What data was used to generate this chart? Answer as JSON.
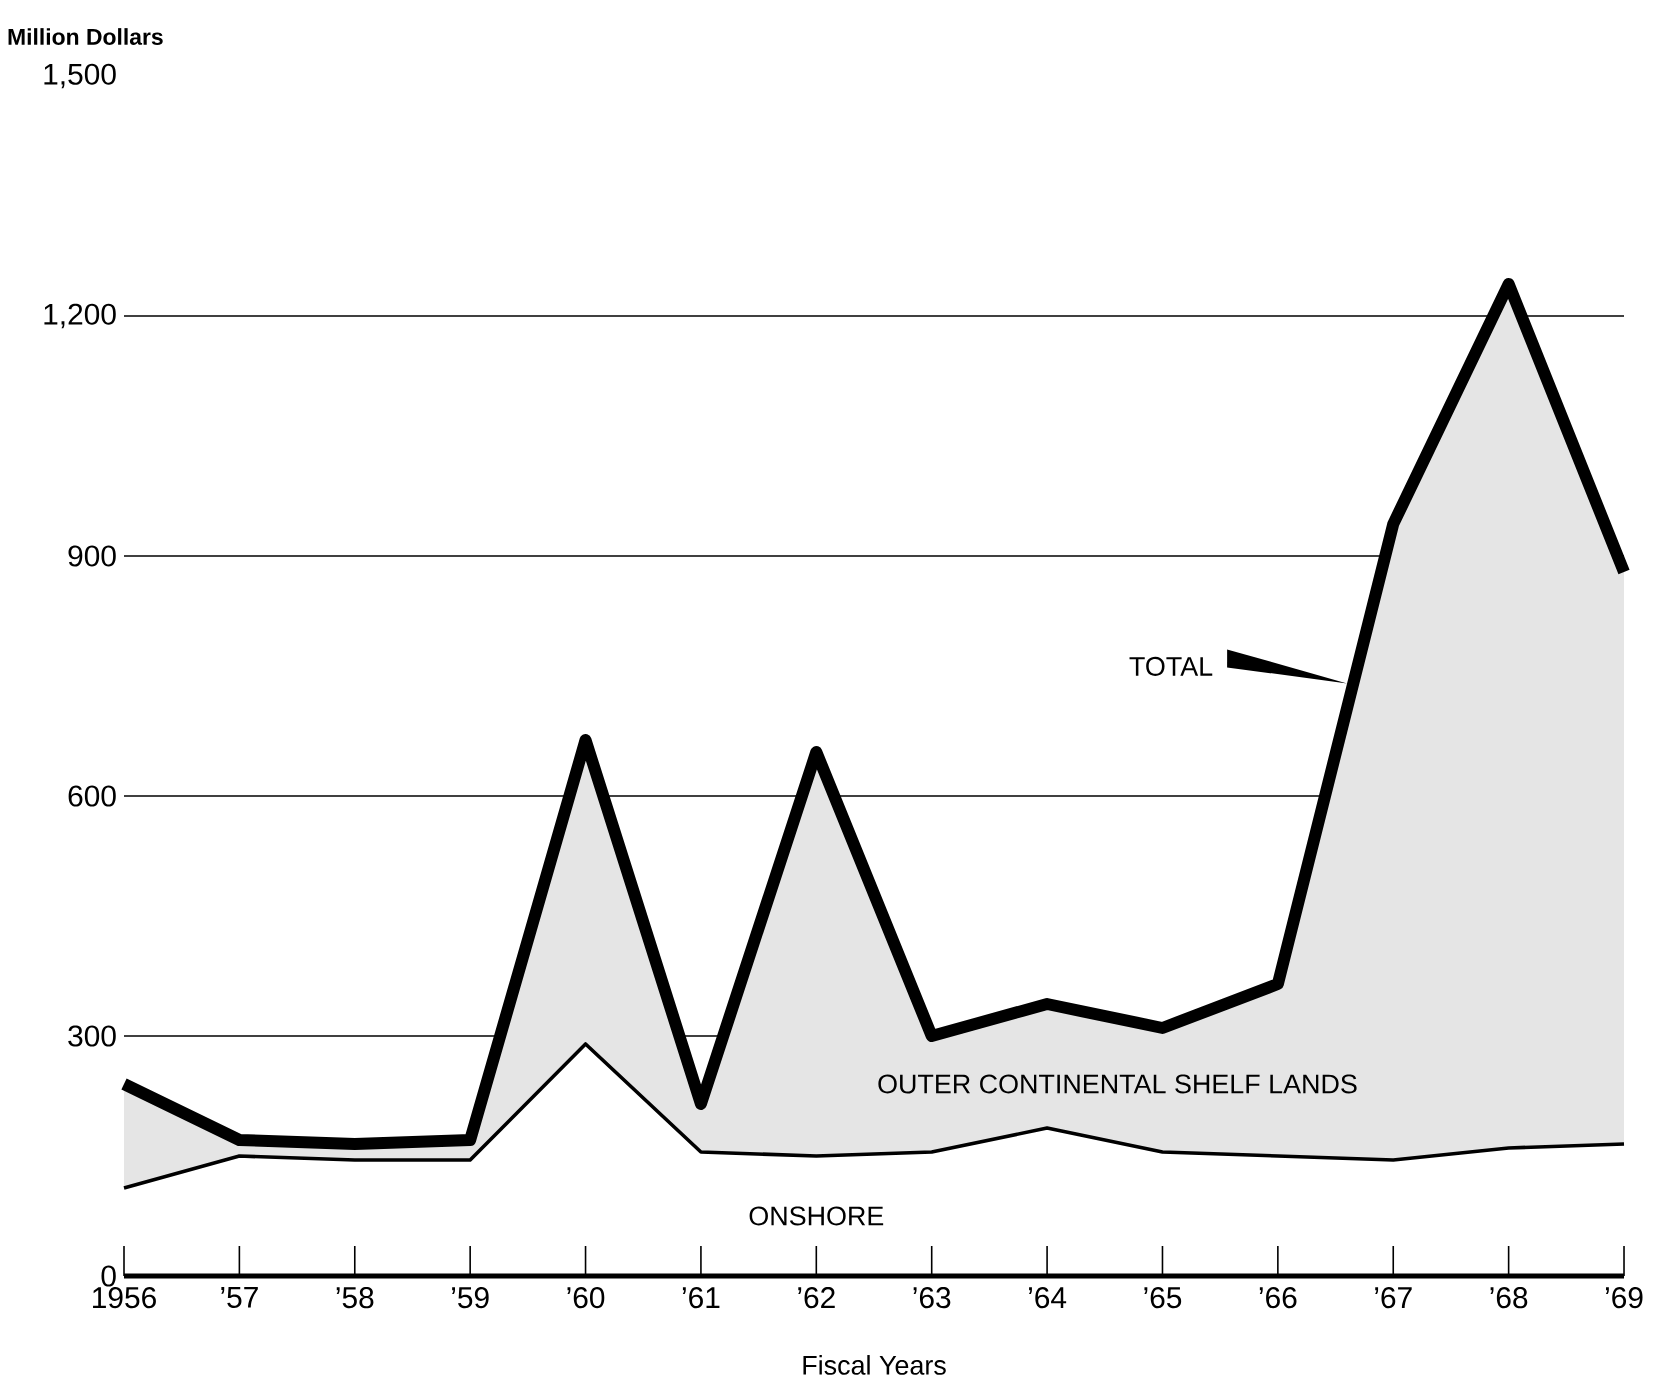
{
  "chart_data": {
    "type": "line",
    "xlabel": "Fiscal Years",
    "ylabel": "Million Dollars",
    "categories": [
      "1956",
      "’57",
      "’58",
      "’59",
      "’60",
      "’61",
      "’62",
      "’63",
      "’64",
      "’65",
      "’66",
      "’67",
      "’68",
      "’69"
    ],
    "series": [
      {
        "name": "ONSHORE",
        "color": "#000000",
        "values": [
          110,
          150,
          145,
          145,
          290,
          155,
          150,
          155,
          185,
          155,
          150,
          145,
          160,
          165
        ]
      },
      {
        "name": "TOTAL",
        "color": "#000000",
        "values": [
          240,
          170,
          165,
          170,
          670,
          215,
          655,
          300,
          340,
          310,
          365,
          940,
          1240,
          880
        ],
        "lower": [
          110,
          150,
          145,
          145,
          290,
          155,
          150,
          155,
          185,
          155,
          150,
          145,
          160,
          165
        ],
        "upper": [
          240,
          170,
          165,
          170,
          670,
          215,
          655,
          300,
          340,
          310,
          365,
          940,
          1240,
          880
        ]
      }
    ],
    "annotations": [
      "OUTER CONTINENTAL SHELF LANDS"
    ],
    "ylim": [
      0,
      1500
    ],
    "yticks": [
      0,
      300,
      600,
      900,
      {
        "value": 1200,
        "label": "1,200"
      },
      {
        "value": 1500,
        "label": "1,500"
      }
    ],
    "grid": "y"
  }
}
